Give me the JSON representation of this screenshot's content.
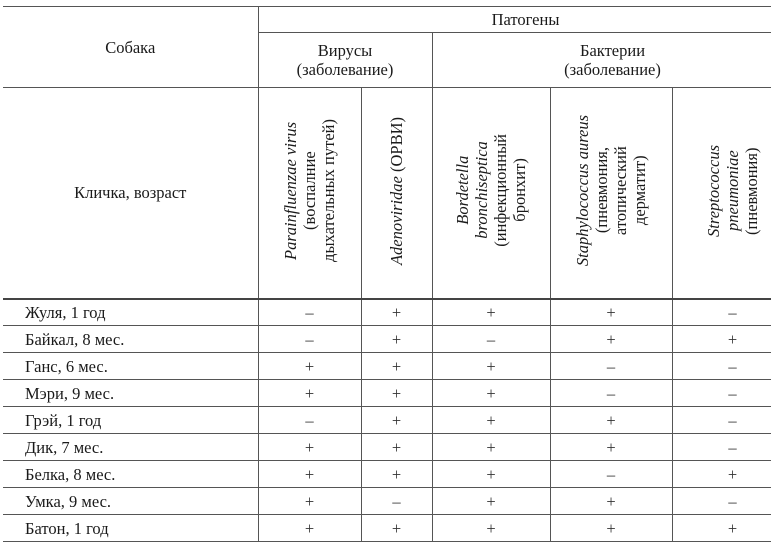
{
  "header": {
    "dog": "Собака",
    "pathogens": "Патогены",
    "viruses": "Вирусы",
    "bacteria": "Бактерии",
    "disease_note": "(заболевание)",
    "name_age": "Кличка, возраст"
  },
  "columns": [
    {
      "latin": "Parainfluenzae virus",
      "disease_lines": [
        "(воспалние",
        "дыхательных путей)"
      ]
    },
    {
      "latin": "Adenoviridae",
      "disease_lines": [
        "(ОРВИ)"
      ]
    },
    {
      "latin_lines": [
        "Bordetella",
        "bronchiseptica"
      ],
      "disease_lines": [
        "(инфекционный",
        "бронхит)"
      ]
    },
    {
      "latin": "Staphylococcus aureus",
      "disease_lines": [
        "(пневмония,",
        "атопический",
        "дерматит)"
      ]
    },
    {
      "latin_lines": [
        "Streptococcus",
        "pneumoniae"
      ],
      "disease_lines": [
        "(пневмония)"
      ]
    }
  ],
  "rows": [
    {
      "name": "Жуля, 1 год",
      "values": [
        "–",
        "+",
        "+",
        "+",
        "–"
      ]
    },
    {
      "name": "Байкал, 8 мес.",
      "values": [
        "–",
        "+",
        "–",
        "+",
        "+"
      ]
    },
    {
      "name": "Ганс, 6 мес.",
      "values": [
        "+",
        "+",
        "+",
        "–",
        "–"
      ]
    },
    {
      "name": "Мэри, 9 мес.",
      "values": [
        "+",
        "+",
        "+",
        "–",
        "–"
      ]
    },
    {
      "name": "Грэй, 1 год",
      "values": [
        "–",
        "+",
        "+",
        "+",
        "–"
      ]
    },
    {
      "name": "Дик, 7 мес.",
      "values": [
        "+",
        "+",
        "+",
        "+",
        "–"
      ]
    },
    {
      "name": "Белка, 8 мес.",
      "values": [
        "+",
        "+",
        "+",
        "–",
        "+"
      ]
    },
    {
      "name": "Умка, 9 мес.",
      "values": [
        "+",
        "–",
        "+",
        "+",
        "–"
      ]
    },
    {
      "name": "Батон, 1 год",
      "values": [
        "+",
        "+",
        "+",
        "+",
        "+"
      ]
    }
  ]
}
